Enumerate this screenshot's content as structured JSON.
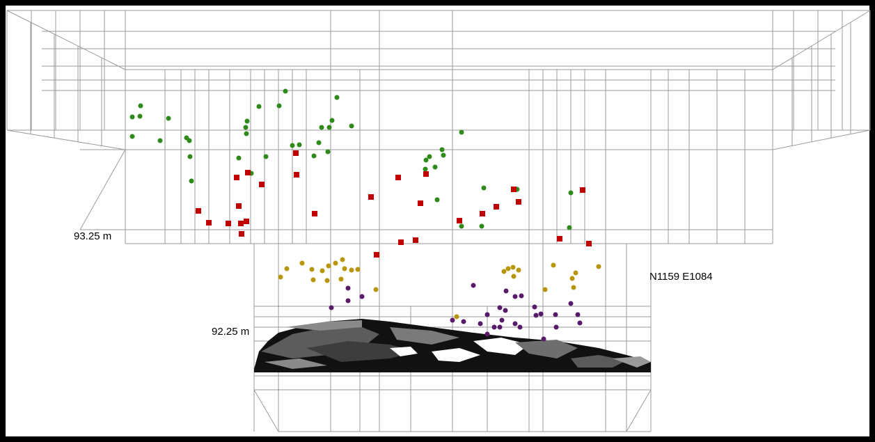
{
  "labels": {
    "elevation_upper": "93.25 m",
    "elevation_lower": "92.25 m",
    "grid_location": "N1159 E1084"
  }
}
